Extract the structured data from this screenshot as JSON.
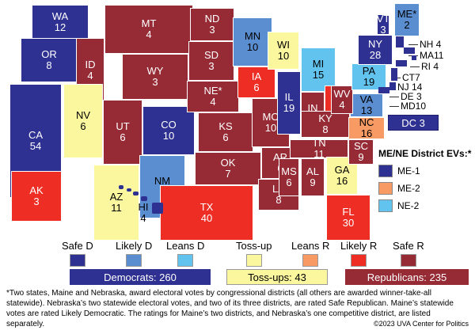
{
  "colors": {
    "safe_d": "#2e3192",
    "likely_d": "#5b8ed0",
    "leans_d": "#62c3ee",
    "toss_up": "#fbf79e",
    "leans_r": "#f79a63",
    "likely_r": "#ee2d24",
    "safe_r": "#962b35"
  },
  "states": [
    {
      "abbr": "WA",
      "ev": "12",
      "rating": "safe_d"
    },
    {
      "abbr": "OR",
      "ev": "8",
      "rating": "safe_d"
    },
    {
      "abbr": "CA",
      "ev": "54",
      "rating": "safe_d"
    },
    {
      "abbr": "ID",
      "ev": "4",
      "rating": "safe_r"
    },
    {
      "abbr": "NV",
      "ev": "6",
      "rating": "toss_up"
    },
    {
      "abbr": "MT",
      "ev": "4",
      "rating": "safe_r"
    },
    {
      "abbr": "WY",
      "ev": "3",
      "rating": "safe_r"
    },
    {
      "abbr": "UT",
      "ev": "6",
      "rating": "safe_r"
    },
    {
      "abbr": "AZ",
      "ev": "11",
      "rating": "toss_up"
    },
    {
      "abbr": "CO",
      "ev": "10",
      "rating": "safe_d"
    },
    {
      "abbr": "NM",
      "ev": "5",
      "rating": "likely_d"
    },
    {
      "abbr": "ND",
      "ev": "3",
      "rating": "safe_r"
    },
    {
      "abbr": "SD",
      "ev": "3",
      "rating": "safe_r"
    },
    {
      "abbr": "NE*",
      "ev": "4",
      "rating": "safe_r"
    },
    {
      "abbr": "KS",
      "ev": "6",
      "rating": "safe_r"
    },
    {
      "abbr": "OK",
      "ev": "7",
      "rating": "safe_r"
    },
    {
      "abbr": "TX",
      "ev": "40",
      "rating": "likely_r"
    },
    {
      "abbr": "MN",
      "ev": "10",
      "rating": "likely_d"
    },
    {
      "abbr": "IA",
      "ev": "6",
      "rating": "likely_r"
    },
    {
      "abbr": "MO",
      "ev": "10",
      "rating": "safe_r"
    },
    {
      "abbr": "AR",
      "ev": "6",
      "rating": "safe_r"
    },
    {
      "abbr": "LA",
      "ev": "8",
      "rating": "safe_r"
    },
    {
      "abbr": "WI",
      "ev": "10",
      "rating": "toss_up"
    },
    {
      "abbr": "IL",
      "ev": "19",
      "rating": "safe_d"
    },
    {
      "abbr": "MI",
      "ev": "15",
      "rating": "leans_d"
    },
    {
      "abbr": "IN",
      "ev": "11",
      "rating": "safe_r"
    },
    {
      "abbr": "OH",
      "ev": "17",
      "rating": "likely_r"
    },
    {
      "abbr": "KY",
      "ev": "8",
      "rating": "safe_r"
    },
    {
      "abbr": "TN",
      "ev": "11",
      "rating": "safe_r"
    },
    {
      "abbr": "MS",
      "ev": "6",
      "rating": "safe_r"
    },
    {
      "abbr": "AL",
      "ev": "9",
      "rating": "safe_r"
    },
    {
      "abbr": "GA",
      "ev": "16",
      "rating": "toss_up"
    },
    {
      "abbr": "FL",
      "ev": "30",
      "rating": "likely_r"
    },
    {
      "abbr": "SC",
      "ev": "9",
      "rating": "safe_r"
    },
    {
      "abbr": "NC",
      "ev": "16",
      "rating": "leans_r"
    },
    {
      "abbr": "VA",
      "ev": "13",
      "rating": "likely_d"
    },
    {
      "abbr": "WV",
      "ev": "4",
      "rating": "safe_r"
    },
    {
      "abbr": "PA",
      "ev": "19",
      "rating": "leans_d"
    },
    {
      "abbr": "NY",
      "ev": "28",
      "rating": "safe_d"
    },
    {
      "abbr": "VT",
      "ev": "3",
      "rating": "safe_d"
    },
    {
      "abbr": "ME*",
      "ev": "2",
      "rating": "likely_d"
    },
    {
      "abbr": "AK",
      "ev": "3",
      "rating": "likely_r"
    },
    {
      "abbr": "HI",
      "ev": "4",
      "rating": "safe_d"
    }
  ],
  "east_labels": [
    {
      "text": "NH 4",
      "rating": "safe_d"
    },
    {
      "text": "MA11",
      "rating": "safe_d"
    },
    {
      "text": "RI 4",
      "rating": "safe_d"
    },
    {
      "text": "CT7",
      "rating": "safe_d"
    },
    {
      "text": "NJ 14",
      "rating": "safe_d"
    },
    {
      "text": "DE 3",
      "rating": "safe_d"
    },
    {
      "text": "MD10",
      "rating": "safe_d"
    }
  ],
  "dc": {
    "text": "DC 3",
    "rating": "safe_d"
  },
  "district_panel": {
    "title": "ME/NE District EVs:*",
    "items": [
      {
        "label": "ME-1",
        "rating": "safe_d"
      },
      {
        "label": "ME-2",
        "rating": "leans_r"
      },
      {
        "label": "NE-2",
        "rating": "leans_d"
      }
    ]
  },
  "legend": [
    {
      "label": "Safe D",
      "rating": "safe_d"
    },
    {
      "label": "Likely D",
      "rating": "likely_d"
    },
    {
      "label": "Leans D",
      "rating": "leans_d"
    },
    {
      "label": "Toss-up",
      "rating": "toss_up"
    },
    {
      "label": "Leans R",
      "rating": "leans_r"
    },
    {
      "label": "Likely R",
      "rating": "likely_r"
    },
    {
      "label": "Safe R",
      "rating": "safe_r"
    }
  ],
  "totals": {
    "democrats": "Democrats: 260",
    "tossups": "Toss-ups: 43",
    "republicans": "Republicans: 235"
  },
  "note": "*Two states, Maine and Nebraska, award electoral votes by congressional districts (all others are awarded winner-take-all statewide). Nebraska’s two statewide electoral votes, and two of its three districts, are rated Safe Republican. Maine’s statewide votes are rated Likely Democratic. The ratings for Maine’s two districts, and Nebraska’s one competitive district, are listed separately.",
  "copyright": "©2023 UVA Center for Politics"
}
